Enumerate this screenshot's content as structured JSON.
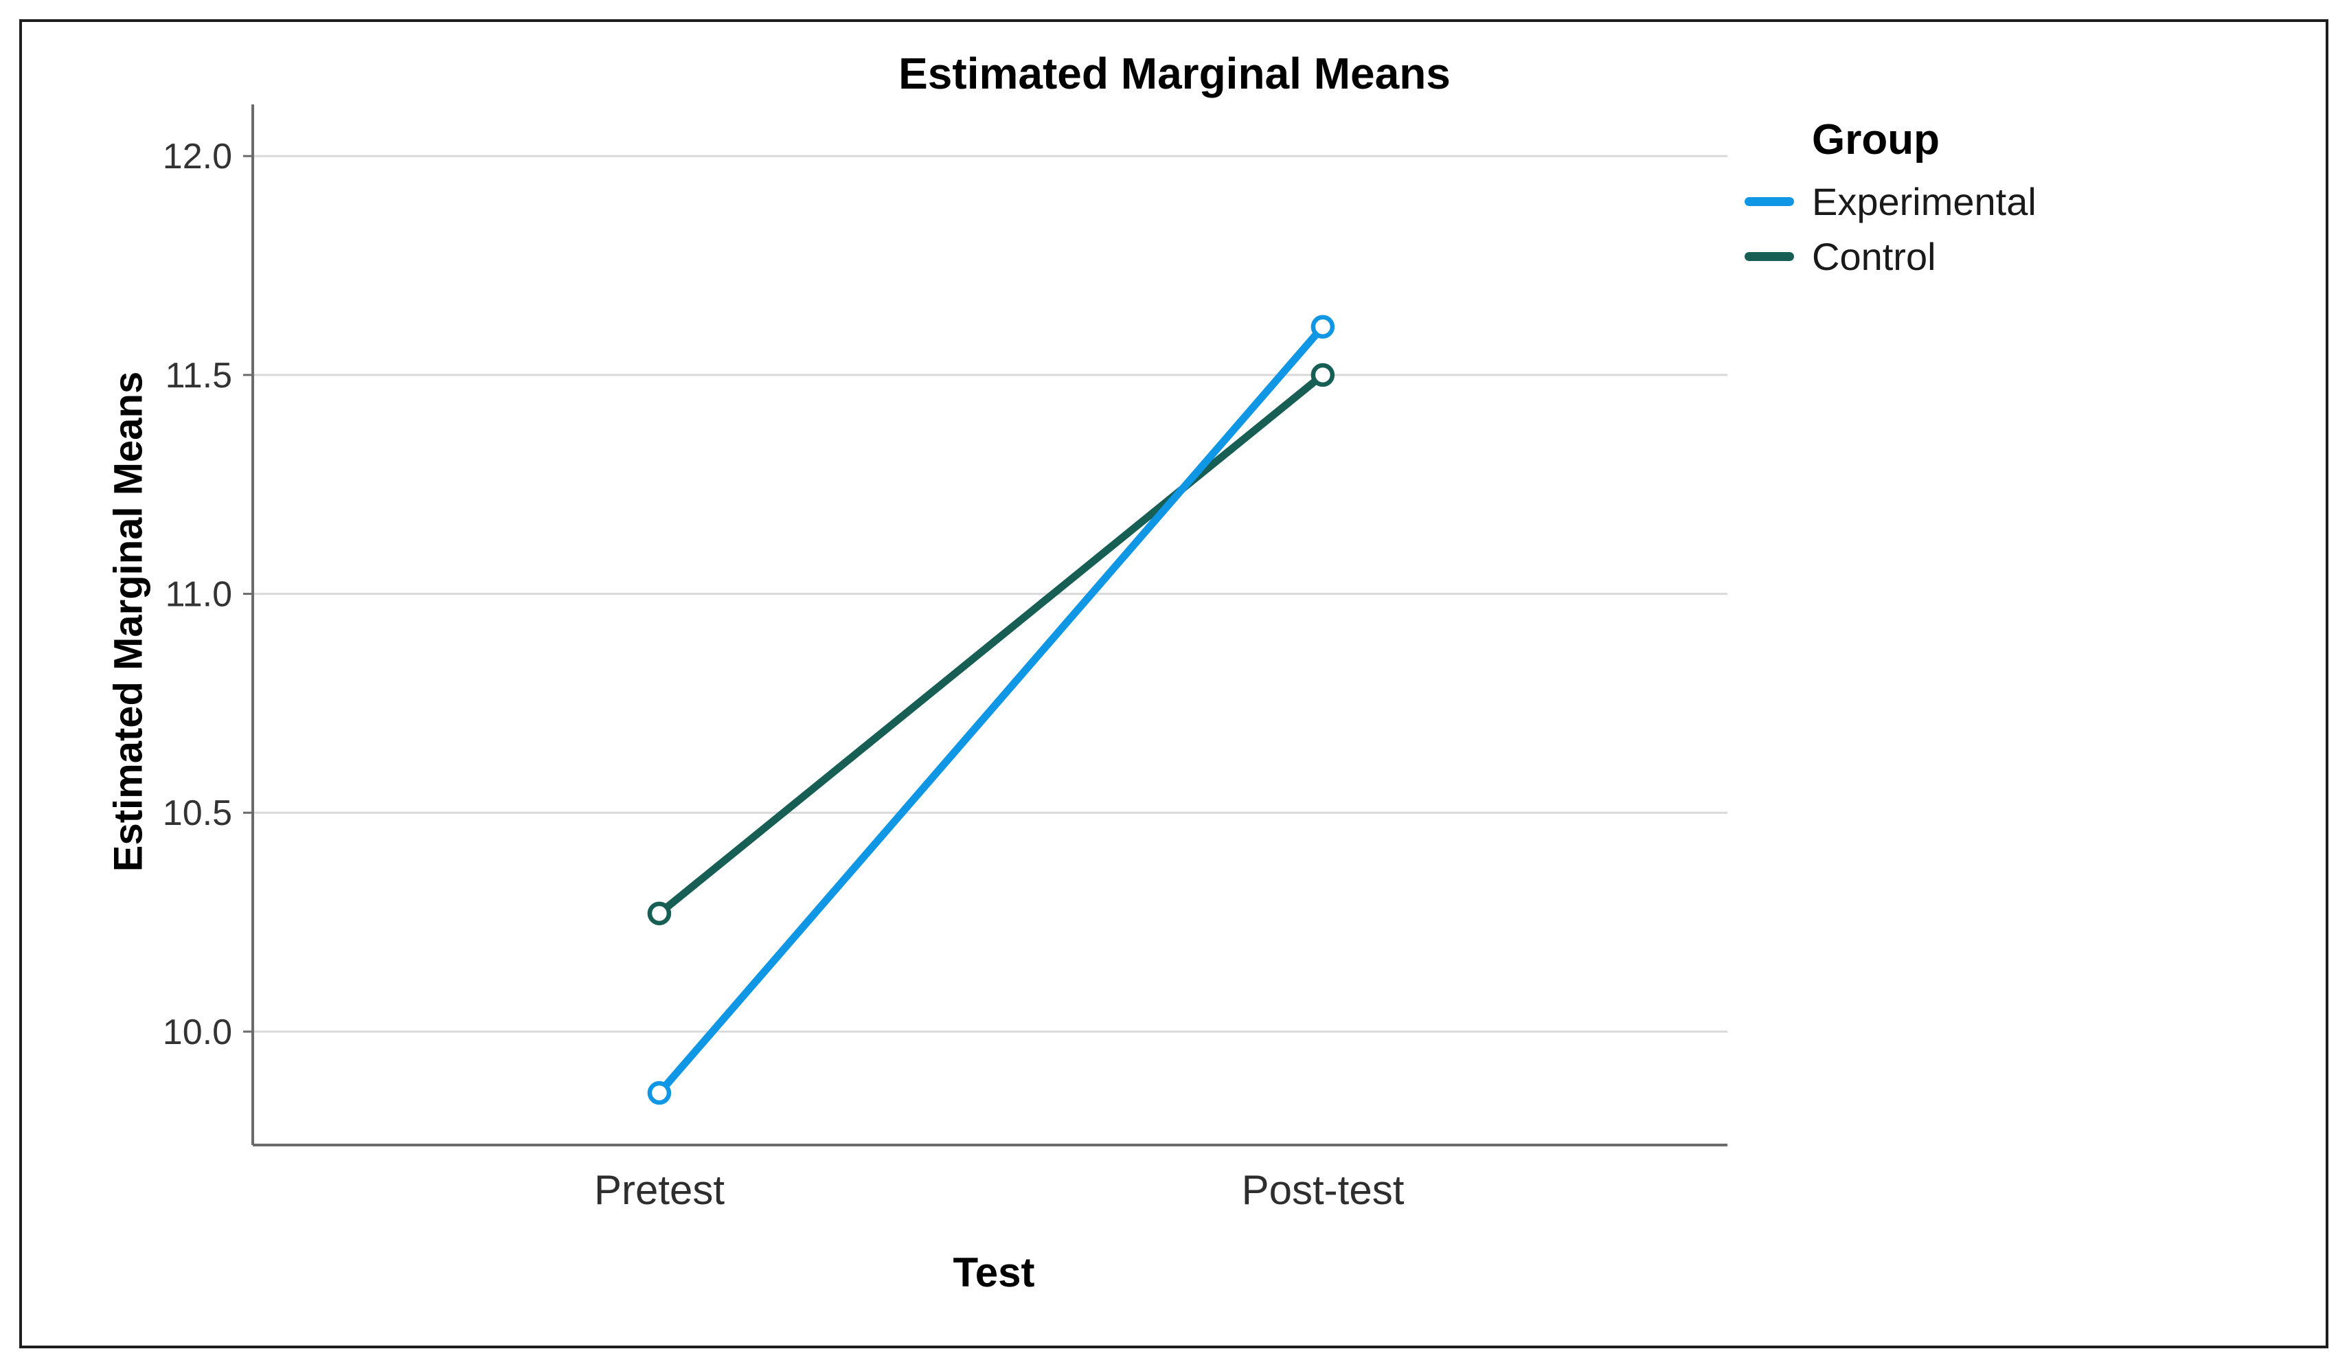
{
  "figure": {
    "title": "Estimated Marginal Means"
  },
  "chart_data": {
    "type": "line",
    "title": "Estimated Marginal Means",
    "xlabel": "Test",
    "ylabel": "Estimated Marginal Means",
    "categories": [
      "Pretest",
      "Post-test"
    ],
    "series": [
      {
        "name": "Experimental",
        "values": [
          9.86,
          11.61
        ],
        "color": "#0f96e4"
      },
      {
        "name": "Control",
        "values": [
          10.27,
          11.5
        ],
        "color": "#175e54"
      }
    ],
    "ylim": [
      9.741,
      12.118
    ],
    "yticks": [
      10.0,
      10.5,
      11.0,
      11.5,
      12.0
    ],
    "ytick_labels": [
      "10.0",
      "10.5",
      "11.0",
      "11.5",
      "12.0"
    ],
    "grid": "horizontal",
    "legend": {
      "title": "Group",
      "position": "top-right"
    },
    "colors": {
      "grid": "#d9d9d9",
      "axis": "#6b6b6b",
      "tick_text": "#333333"
    }
  }
}
